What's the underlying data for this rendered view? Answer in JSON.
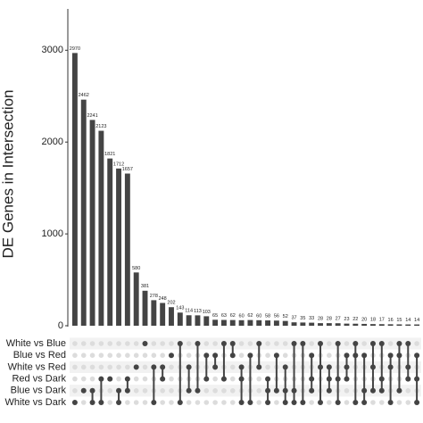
{
  "chart_data": {
    "type": "upset",
    "y_label": "DE Genes in Intersection",
    "sets": [
      "White vs Blue",
      "Blue vs Red",
      "White vs Red",
      "Red vs Dark",
      "Blue vs Dark",
      "White vs Dark"
    ],
    "values": [
      2970,
      2462,
      2241,
      2123,
      1821,
      1712,
      1657,
      580,
      381,
      278,
      248,
      202,
      143,
      114,
      113,
      103,
      65,
      63,
      62,
      60,
      62,
      60,
      58,
      56,
      52,
      37,
      35,
      33,
      28,
      28,
      27,
      23,
      22,
      20,
      18,
      17,
      16,
      15,
      14,
      14
    ],
    "memberships": [
      [
        5
      ],
      [
        4
      ],
      [
        4,
        5
      ],
      [
        3,
        5
      ],
      [
        3
      ],
      [
        4,
        5
      ],
      [
        3,
        4
      ],
      [
        2
      ],
      [
        0
      ],
      [
        2,
        5
      ],
      [
        2,
        3
      ],
      [
        1
      ],
      [
        0,
        5
      ],
      [
        2,
        4
      ],
      [
        0,
        4
      ],
      [
        1,
        3
      ],
      [
        1,
        2
      ],
      [
        0,
        3
      ],
      [
        0,
        1
      ],
      [
        2,
        3,
        5
      ],
      [
        1,
        5
      ],
      [
        0,
        2
      ],
      [
        3,
        4,
        5
      ],
      [
        1,
        4
      ],
      [
        2,
        4,
        5
      ],
      [
        0,
        4,
        5
      ],
      [
        0,
        5
      ],
      [
        1,
        3,
        4
      ],
      [
        0,
        2,
        5
      ],
      [
        2,
        3,
        4
      ],
      [
        0,
        3,
        5
      ],
      [
        1,
        2,
        3
      ],
      [
        0,
        1,
        5
      ],
      [
        1,
        4,
        5
      ],
      [
        0,
        2,
        4
      ],
      [
        0,
        3,
        4
      ],
      [
        1,
        2,
        5
      ],
      [
        0,
        1,
        4
      ],
      [
        0,
        2,
        3
      ],
      [
        1,
        3,
        5
      ]
    ],
    "color": "#444444",
    "ylim": [
      0,
      3450
    ],
    "yticks": [
      0,
      1000,
      2000,
      3000
    ]
  }
}
